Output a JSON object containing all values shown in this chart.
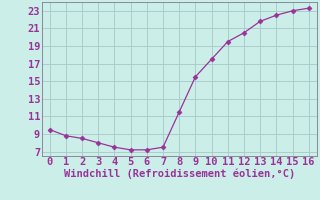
{
  "x": [
    0,
    1,
    2,
    3,
    4,
    5,
    6,
    7,
    8,
    9,
    10,
    11,
    12,
    13,
    14,
    15,
    16
  ],
  "y": [
    9.5,
    8.8,
    8.5,
    8.0,
    7.5,
    7.2,
    7.2,
    7.5,
    11.5,
    15.5,
    17.5,
    19.5,
    20.5,
    21.8,
    22.5,
    23.0,
    23.3
  ],
  "line_color": "#993399",
  "marker": "D",
  "marker_size": 2.5,
  "bg_color": "#cceee8",
  "grid_color": "#aacccc",
  "xlabel": "Windchill (Refroidissement éolien,°C)",
  "xlabel_color": "#993399",
  "tick_color": "#993399",
  "spine_color": "#888899",
  "ylim": [
    6.5,
    24
  ],
  "xlim": [
    -0.5,
    16.5
  ],
  "yticks": [
    7,
    9,
    11,
    13,
    15,
    17,
    19,
    21,
    23
  ],
  "xticks": [
    0,
    1,
    2,
    3,
    4,
    5,
    6,
    7,
    8,
    9,
    10,
    11,
    12,
    13,
    14,
    15,
    16
  ],
  "tick_fontsize": 7.5,
  "xlabel_fontsize": 7.5
}
